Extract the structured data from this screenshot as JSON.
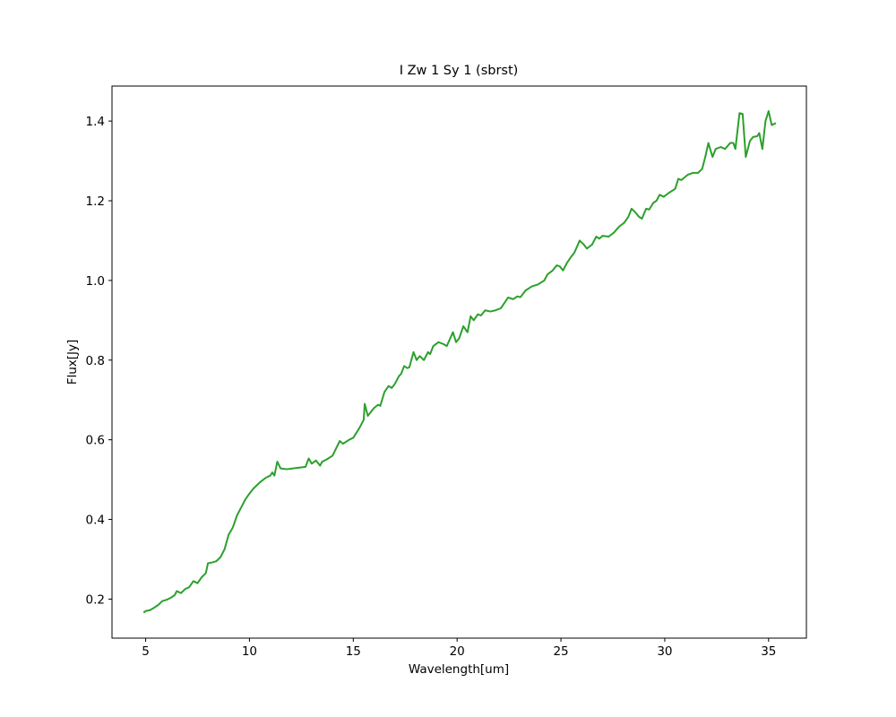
{
  "chart_data": {
    "type": "line",
    "title": "I Zw 1 Sy 1 (sbrst)",
    "xlabel": "Wavelength[um]",
    "ylabel": "Flux[Jy]",
    "x": [
      4.9,
      5.0,
      5.2,
      5.4,
      5.6,
      5.8,
      6.0,
      6.2,
      6.4,
      6.5,
      6.7,
      6.9,
      7.1,
      7.3,
      7.5,
      7.7,
      7.9,
      8.0,
      8.2,
      8.4,
      8.6,
      8.8,
      9.0,
      9.2,
      9.4,
      9.6,
      9.8,
      10.0,
      10.2,
      10.5,
      10.8,
      11.0,
      11.1,
      11.2,
      11.34,
      11.5,
      11.8,
      12.1,
      12.4,
      12.7,
      12.85,
      13.0,
      13.2,
      13.4,
      13.5,
      13.7,
      14.0,
      14.35,
      14.5,
      14.8,
      15.0,
      15.3,
      15.5,
      15.55,
      15.7,
      16.0,
      16.2,
      16.3,
      16.5,
      16.7,
      16.85,
      17.0,
      17.2,
      17.3,
      17.45,
      17.6,
      17.7,
      17.9,
      18.05,
      18.2,
      18.4,
      18.6,
      18.7,
      18.85,
      19.1,
      19.35,
      19.5,
      19.8,
      19.95,
      20.1,
      20.3,
      20.5,
      20.65,
      20.8,
      21.0,
      21.15,
      21.35,
      21.6,
      21.85,
      22.1,
      22.3,
      22.45,
      22.7,
      22.9,
      23.05,
      23.3,
      23.6,
      23.9,
      24.2,
      24.35,
      24.6,
      24.8,
      24.95,
      25.1,
      25.3,
      25.5,
      25.65,
      25.9,
      26.1,
      26.25,
      26.5,
      26.7,
      26.85,
      27.0,
      27.3,
      27.55,
      27.8,
      28.05,
      28.25,
      28.4,
      28.6,
      28.75,
      28.9,
      29.1,
      29.25,
      29.45,
      29.6,
      29.75,
      29.95,
      30.2,
      30.5,
      30.65,
      30.8,
      31.1,
      31.35,
      31.6,
      31.8,
      31.95,
      32.1,
      32.3,
      32.45,
      32.7,
      32.9,
      33.15,
      33.3,
      33.4,
      33.6,
      33.75,
      33.9,
      34.1,
      34.25,
      34.45,
      34.55,
      34.7,
      34.85,
      35.0,
      35.15,
      35.35
    ],
    "series": [
      {
        "name": "I Zw 1 Sy 1 (sbrst)",
        "color": "#2ca02c",
        "values": [
          0.166,
          0.17,
          0.172,
          0.178,
          0.185,
          0.195,
          0.198,
          0.203,
          0.21,
          0.22,
          0.215,
          0.225,
          0.23,
          0.245,
          0.24,
          0.255,
          0.265,
          0.29,
          0.292,
          0.295,
          0.305,
          0.325,
          0.362,
          0.38,
          0.41,
          0.43,
          0.45,
          0.465,
          0.478,
          0.493,
          0.505,
          0.51,
          0.518,
          0.51,
          0.545,
          0.528,
          0.526,
          0.528,
          0.53,
          0.532,
          0.553,
          0.54,
          0.548,
          0.535,
          0.545,
          0.55,
          0.56,
          0.597,
          0.59,
          0.6,
          0.605,
          0.63,
          0.65,
          0.69,
          0.66,
          0.68,
          0.688,
          0.685,
          0.72,
          0.735,
          0.73,
          0.74,
          0.76,
          0.765,
          0.785,
          0.78,
          0.782,
          0.82,
          0.8,
          0.81,
          0.8,
          0.82,
          0.815,
          0.835,
          0.845,
          0.84,
          0.835,
          0.87,
          0.845,
          0.855,
          0.885,
          0.87,
          0.91,
          0.9,
          0.915,
          0.912,
          0.925,
          0.922,
          0.925,
          0.93,
          0.945,
          0.957,
          0.953,
          0.96,
          0.958,
          0.975,
          0.985,
          0.99,
          1.0,
          1.015,
          1.025,
          1.038,
          1.035,
          1.025,
          1.045,
          1.06,
          1.07,
          1.1,
          1.09,
          1.08,
          1.09,
          1.11,
          1.105,
          1.112,
          1.11,
          1.12,
          1.135,
          1.145,
          1.16,
          1.18,
          1.17,
          1.16,
          1.155,
          1.18,
          1.178,
          1.195,
          1.2,
          1.215,
          1.21,
          1.22,
          1.23,
          1.255,
          1.252,
          1.265,
          1.27,
          1.27,
          1.28,
          1.31,
          1.345,
          1.31,
          1.33,
          1.335,
          1.33,
          1.345,
          1.345,
          1.33,
          1.42,
          1.418,
          1.31,
          1.35,
          1.36,
          1.362,
          1.37,
          1.33,
          1.4,
          1.425,
          1.39,
          1.395
        ]
      }
    ],
    "xlim": [
      3.38,
      36.82
    ],
    "ylim": [
      0.102,
      1.488
    ],
    "xticks": [
      5,
      10,
      15,
      20,
      25,
      30,
      35
    ],
    "yticks": [
      0.2,
      0.4,
      0.6,
      0.8,
      {
        "value": 1,
        "label": "1.0"
      },
      1.2,
      1.4
    ]
  }
}
